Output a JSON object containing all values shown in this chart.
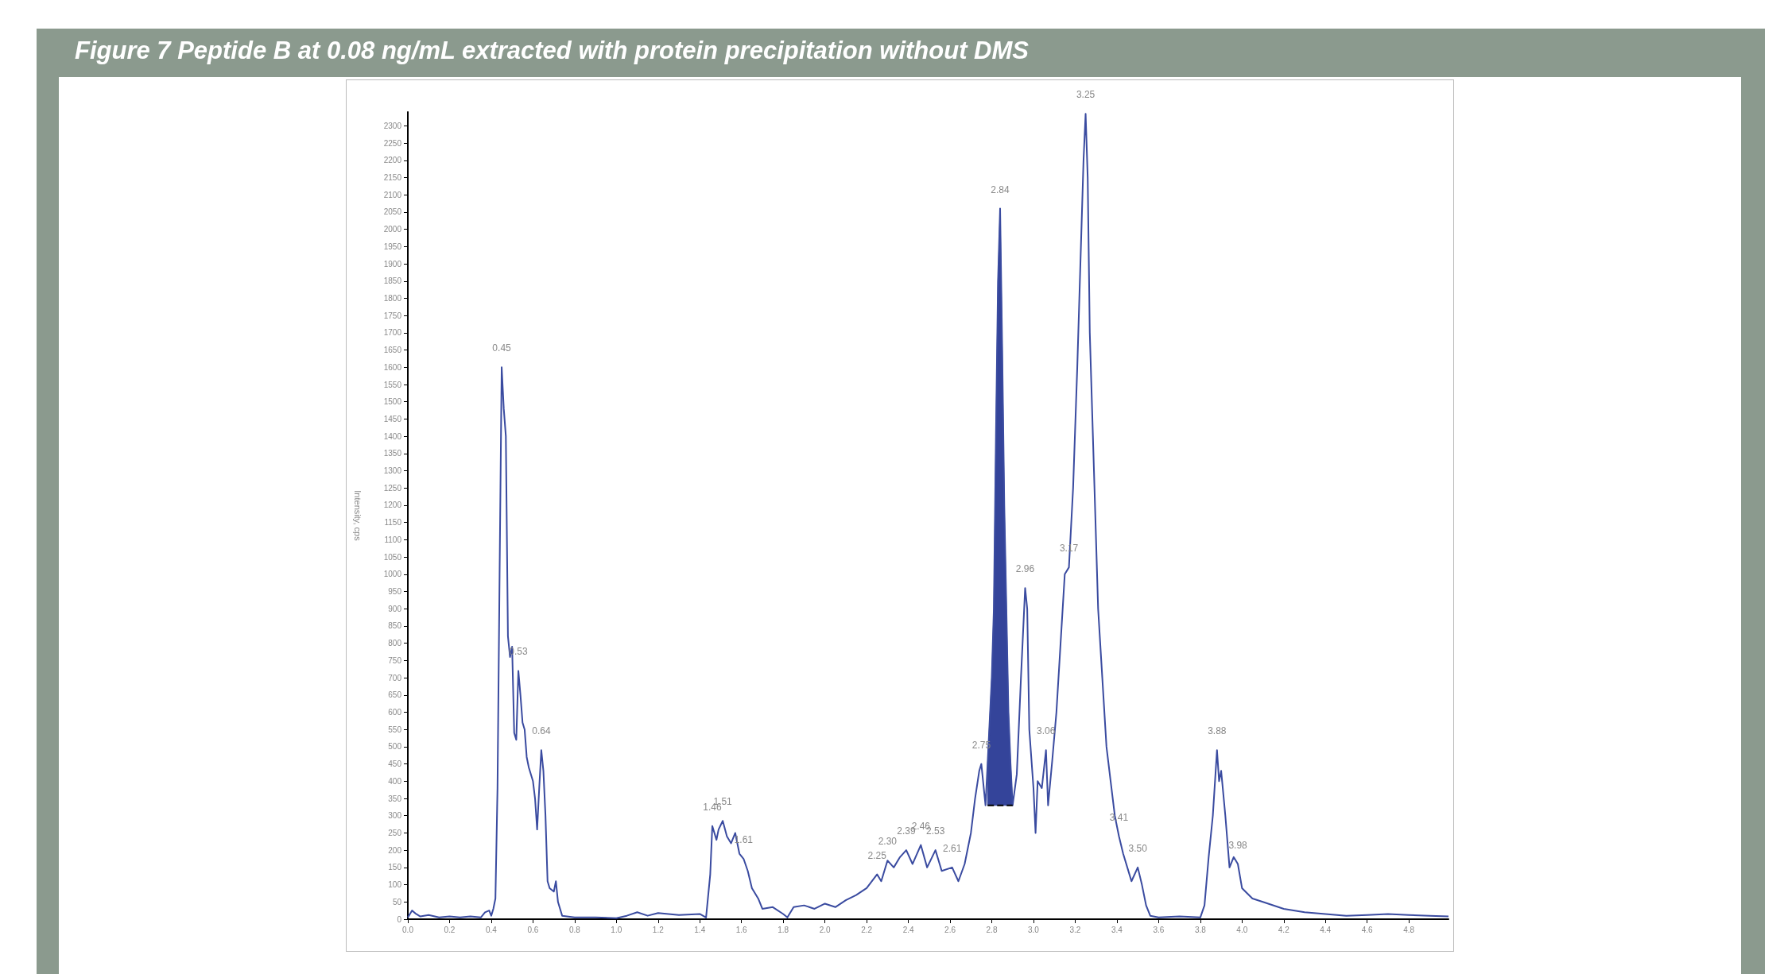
{
  "chart_data": {
    "type": "line",
    "title": "Figure 7 Peptide B at 0.08 ng/mL extracted with protein precipitation without DMS",
    "ylabel": "Intensity, cps",
    "xlim": [
      0,
      4.99
    ],
    "xticks": [
      {
        "value": 0,
        "label": "0.0"
      },
      {
        "value": 0.2,
        "label": "0.2"
      },
      {
        "value": 0.4,
        "label": "0.4"
      },
      {
        "value": 0.6,
        "label": "0.6"
      },
      {
        "value": 0.8,
        "label": "0.8"
      },
      {
        "value": 1,
        "label": "1.0"
      },
      {
        "value": 1.2,
        "label": "1.2"
      },
      {
        "value": 1.4,
        "label": "1.4"
      },
      {
        "value": 1.6,
        "label": "1.6"
      },
      {
        "value": 1.8,
        "label": "1.8"
      },
      {
        "value": 2,
        "label": "2.0"
      },
      {
        "value": 2.2,
        "label": "2.2"
      },
      {
        "value": 2.4,
        "label": "2.4"
      },
      {
        "value": 2.6,
        "label": "2.6"
      },
      {
        "value": 2.8,
        "label": "2.8"
      },
      {
        "value": 3,
        "label": "3.0"
      },
      {
        "value": 3.2,
        "label": "3.2"
      },
      {
        "value": 3.4,
        "label": "3.4"
      },
      {
        "value": 3.6,
        "label": "3.6"
      },
      {
        "value": 3.8,
        "label": "3.8"
      },
      {
        "value": 4,
        "label": "4.0"
      },
      {
        "value": 4.2,
        "label": "4.2"
      },
      {
        "value": 4.4,
        "label": "4.4"
      },
      {
        "value": 4.6,
        "label": "4.6"
      },
      {
        "value": 4.8,
        "label": "4.8"
      }
    ],
    "ylim": [
      0,
      2340
    ],
    "yticks": [
      0,
      50,
      100,
      150,
      200,
      250,
      300,
      350,
      400,
      450,
      500,
      550,
      600,
      650,
      700,
      750,
      800,
      850,
      900,
      950,
      1000,
      1050,
      1100,
      1150,
      1200,
      1250,
      1300,
      1350,
      1400,
      1450,
      1500,
      1550,
      1600,
      1650,
      1700,
      1750,
      1800,
      1850,
      1900,
      1950,
      2000,
      2050,
      2100,
      2150,
      2200,
      2250,
      2300
    ],
    "grid": false,
    "marker": "none",
    "line_style": "solid",
    "series": [
      {
        "color": "#3a4ba0",
        "x": [
          0,
          0.02,
          0.04,
          0.06,
          0.1,
          0.15,
          0.2,
          0.25,
          0.3,
          0.35,
          0.37,
          0.39,
          0.4,
          0.41,
          0.42,
          0.43,
          0.44,
          0.45,
          0.46,
          0.47,
          0.48,
          0.49,
          0.5,
          0.51,
          0.52,
          0.53,
          0.54,
          0.55,
          0.56,
          0.57,
          0.58,
          0.6,
          0.61,
          0.62,
          0.63,
          0.64,
          0.65,
          0.66,
          0.67,
          0.68,
          0.7,
          0.71,
          0.72,
          0.74,
          0.8,
          0.9,
          1,
          1.05,
          1.1,
          1.15,
          1.2,
          1.3,
          1.4,
          1.43,
          1.45,
          1.46,
          1.48,
          1.49,
          1.51,
          1.53,
          1.55,
          1.57,
          1.59,
          1.61,
          1.63,
          1.65,
          1.68,
          1.7,
          1.75,
          1.8,
          1.82,
          1.85,
          1.9,
          1.95,
          2,
          2.05,
          2.1,
          2.15,
          2.2,
          2.25,
          2.27,
          2.3,
          2.33,
          2.36,
          2.39,
          2.42,
          2.46,
          2.49,
          2.53,
          2.56,
          2.61,
          2.64,
          2.67,
          2.7,
          2.72,
          2.74,
          2.75,
          2.77,
          2.78,
          2.8,
          2.81,
          2.82,
          2.83,
          2.84,
          2.85,
          2.86,
          2.87,
          2.88,
          2.89,
          2.9,
          2.92,
          2.94,
          2.96,
          2.97,
          2.98,
          3,
          3.01,
          3.02,
          3.04,
          3.06,
          3.07,
          3.09,
          3.11,
          3.13,
          3.15,
          3.17,
          3.19,
          3.21,
          3.23,
          3.24,
          3.25,
          3.26,
          3.27,
          3.29,
          3.31,
          3.33,
          3.35,
          3.37,
          3.39,
          3.41,
          3.43,
          3.45,
          3.47,
          3.5,
          3.52,
          3.54,
          3.56,
          3.6,
          3.7,
          3.8,
          3.82,
          3.84,
          3.86,
          3.88,
          3.89,
          3.9,
          3.92,
          3.94,
          3.96,
          3.98,
          4,
          4.05,
          4.1,
          4.2,
          4.3,
          4.4,
          4.5,
          4.6,
          4.7,
          4.8,
          4.9,
          4.99
        ],
        "values": [
          5,
          25,
          15,
          8,
          12,
          5,
          8,
          5,
          8,
          5,
          20,
          25,
          10,
          30,
          60,
          380,
          1000,
          1600,
          1480,
          1400,
          820,
          760,
          790,
          540,
          520,
          720,
          650,
          570,
          550,
          470,
          440,
          400,
          350,
          260,
          380,
          490,
          430,
          300,
          110,
          90,
          80,
          110,
          50,
          10,
          5,
          5,
          3,
          10,
          20,
          10,
          18,
          12,
          15,
          5,
          130,
          270,
          230,
          260,
          285,
          240,
          220,
          250,
          190,
          175,
          140,
          90,
          60,
          30,
          35,
          15,
          5,
          35,
          40,
          30,
          45,
          35,
          55,
          70,
          90,
          130,
          110,
          170,
          150,
          180,
          200,
          160,
          215,
          150,
          200,
          140,
          150,
          110,
          160,
          250,
          350,
          430,
          450,
          330,
          450,
          700,
          900,
          1400,
          1850,
          2060,
          1650,
          1200,
          900,
          600,
          450,
          330,
          420,
          700,
          960,
          900,
          550,
          380,
          250,
          400,
          380,
          490,
          330,
          460,
          600,
          800,
          1000,
          1020,
          1250,
          1600,
          2000,
          2200,
          2335,
          2150,
          1700,
          1300,
          900,
          700,
          500,
          400,
          300,
          240,
          190,
          150,
          110,
          150,
          100,
          40,
          10,
          5,
          8,
          5,
          40,
          180,
          300,
          490,
          400,
          430,
          300,
          150,
          180,
          160,
          90,
          60,
          50,
          30,
          20,
          15,
          10,
          12,
          15,
          12,
          10,
          8
        ]
      },
      {
        "type": "line",
        "color": "#000000",
        "line_style": "dashed",
        "x": [
          2.78,
          2.9
        ],
        "values": [
          330,
          330
        ]
      },
      {
        "type": "area",
        "color": "#34449a",
        "x": [
          2.78,
          2.8,
          2.81,
          2.82,
          2.83,
          2.84,
          2.85,
          2.86,
          2.87,
          2.88,
          2.89,
          2.9
        ],
        "values": [
          450,
          700,
          900,
          1400,
          1850,
          2060,
          1650,
          1200,
          900,
          600,
          450,
          330
        ]
      }
    ],
    "annotations": [
      {
        "text": "0.45",
        "x": 0.45,
        "y": 1600
      },
      {
        "text": "0.53",
        "x": 0.53,
        "y": 720
      },
      {
        "text": "0.64",
        "x": 0.64,
        "y": 490
      },
      {
        "text": "1.46",
        "x": 1.46,
        "y": 270
      },
      {
        "text": "1.51",
        "x": 1.51,
        "y": 285
      },
      {
        "text": "1.61",
        "x": 1.61,
        "y": 175
      },
      {
        "text": "2.25",
        "x": 2.25,
        "y": 130
      },
      {
        "text": "2.30",
        "x": 2.3,
        "y": 170
      },
      {
        "text": "2.39",
        "x": 2.39,
        "y": 200
      },
      {
        "text": "2.46",
        "x": 2.46,
        "y": 215
      },
      {
        "text": "2.53",
        "x": 2.53,
        "y": 200
      },
      {
        "text": "2.61",
        "x": 2.61,
        "y": 150
      },
      {
        "text": "2.75",
        "x": 2.75,
        "y": 450
      },
      {
        "text": "2.84",
        "x": 2.84,
        "y": 2060
      },
      {
        "text": "2.96",
        "x": 2.96,
        "y": 960
      },
      {
        "text": "3.06",
        "x": 3.06,
        "y": 490
      },
      {
        "text": "3.17",
        "x": 3.17,
        "y": 1020
      },
      {
        "text": "3.25",
        "x": 3.25,
        "y": 2335
      },
      {
        "text": "3.41",
        "x": 3.41,
        "y": 240
      },
      {
        "text": "3.50",
        "x": 3.5,
        "y": 150
      },
      {
        "text": "3.88",
        "x": 3.88,
        "y": 490
      },
      {
        "text": "3.98",
        "x": 3.98,
        "y": 160
      }
    ]
  }
}
